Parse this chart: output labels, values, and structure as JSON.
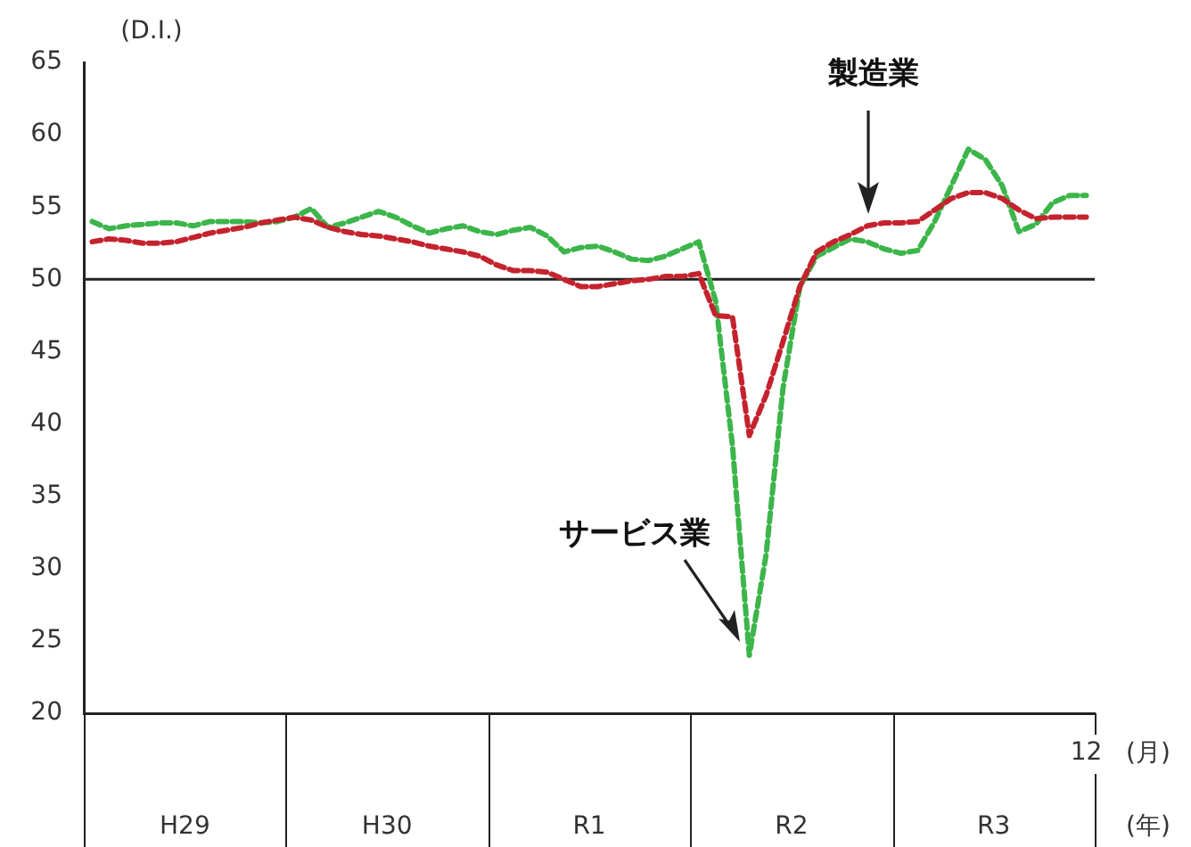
{
  "chart_data": {
    "type": "line",
    "ylabel": "(D.I.)",
    "xlabel": "(年)",
    "categories": [
      null,
      null,
      null,
      null,
      null,
      null,
      null,
      null,
      null,
      null,
      null,
      null,
      null,
      null,
      null,
      null,
      null,
      null,
      null,
      null,
      null,
      null,
      null,
      null,
      null,
      null,
      null,
      null,
      null,
      null,
      null,
      null,
      null,
      null,
      null,
      null,
      null,
      null,
      null,
      null,
      null,
      null,
      null,
      null,
      null,
      null,
      null,
      null,
      null,
      null,
      null,
      null,
      null,
      null,
      null,
      null,
      null,
      null,
      null,
      "12"
    ],
    "annotations": [
      "H29",
      "H30",
      "R1",
      "R2",
      "R3",
      "(月)"
    ],
    "series": [
      {
        "name": "製造業",
        "color": "#c4232e",
        "values": [
          52.6,
          52.8,
          52.7,
          52.5,
          52.5,
          52.6,
          52.9,
          53.2,
          53.4,
          53.6,
          53.9,
          54.1,
          54.3,
          54.1,
          53.6,
          53.3,
          53.1,
          53.0,
          52.8,
          52.6,
          52.3,
          52.1,
          51.9,
          51.6,
          51.0,
          50.6,
          50.6,
          50.5,
          50.0,
          49.5,
          49.5,
          49.7,
          49.9,
          50.0,
          50.2,
          50.2,
          50.4,
          47.5,
          47.4,
          39.2,
          42.0,
          45.7,
          49.5,
          51.9,
          52.6,
          53.1,
          53.7,
          53.9,
          53.9,
          54.0,
          54.8,
          55.6,
          56.0,
          56.0,
          55.6,
          54.8,
          54.2,
          54.3,
          54.3,
          54.3
        ]
      },
      {
        "name": "サービス業",
        "color": "#3cb54a",
        "values": [
          54.0,
          53.5,
          53.7,
          53.8,
          53.9,
          53.9,
          53.7,
          54.0,
          54.0,
          54.0,
          53.9,
          54.0,
          54.3,
          54.9,
          53.6,
          53.9,
          54.3,
          54.7,
          54.3,
          53.7,
          53.2,
          53.5,
          53.7,
          53.3,
          53.1,
          53.4,
          53.6,
          53.0,
          51.9,
          52.2,
          52.3,
          51.9,
          51.4,
          51.3,
          51.6,
          52.1,
          52.6,
          48.5,
          38.5,
          24.0,
          31.0,
          42.5,
          49.5,
          51.6,
          52.2,
          52.8,
          52.6,
          52.1,
          51.8,
          52.0,
          54.0,
          56.5,
          59.0,
          58.3,
          56.5,
          53.3,
          53.8,
          55.3,
          55.8,
          55.8
        ]
      }
    ],
    "ylim": [
      20,
      65
    ],
    "yticks": [
      20,
      25,
      30,
      35,
      40,
      45,
      50,
      55,
      60,
      65
    ],
    "ref_lines": [
      {
        "axis": "y",
        "value": 50,
        "color": "#222222"
      }
    ],
    "grid": false,
    "legend": false,
    "line_style": "dashed",
    "marker": "none"
  }
}
